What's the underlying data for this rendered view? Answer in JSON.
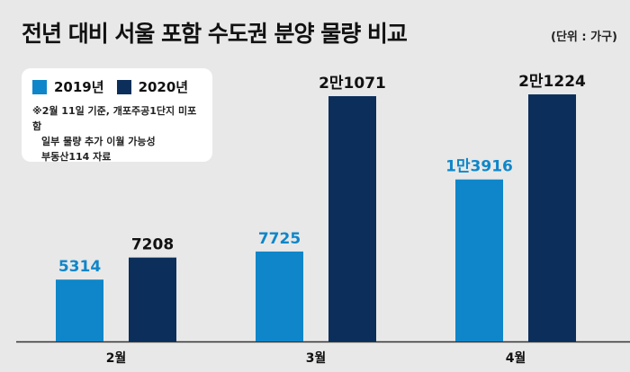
{
  "title": "전년 대비 서울 포함 수도권 분양 물량 비교",
  "unit_label": "(단위 : 가구)",
  "legend": {
    "notes": [
      "※2월 11일 기준, 개포주공1단지 미포함",
      "일부 물량 추가 이월 가능성",
      "부동산114 자료"
    ]
  },
  "colors": {
    "series_2019": "#0f86c9",
    "series_2020": "#0b2e5b",
    "background": "#e8e8e8"
  },
  "chart_data": {
    "type": "bar",
    "title": "전년 대비 서울 포함 수도권 분양 물량 비교",
    "categories": [
      "2월",
      "3월",
      "4월"
    ],
    "series": [
      {
        "name": "2019년",
        "values": [
          5314,
          7725,
          13916
        ],
        "labels": [
          "5314",
          "7725",
          "1만3916"
        ]
      },
      {
        "name": "2020년",
        "values": [
          7208,
          21071,
          21224
        ],
        "labels": [
          "7208",
          "2만1071",
          "2만1224"
        ]
      }
    ],
    "ylim": [
      0,
      22000
    ],
    "grid": false,
    "legend_position": "top-left"
  }
}
